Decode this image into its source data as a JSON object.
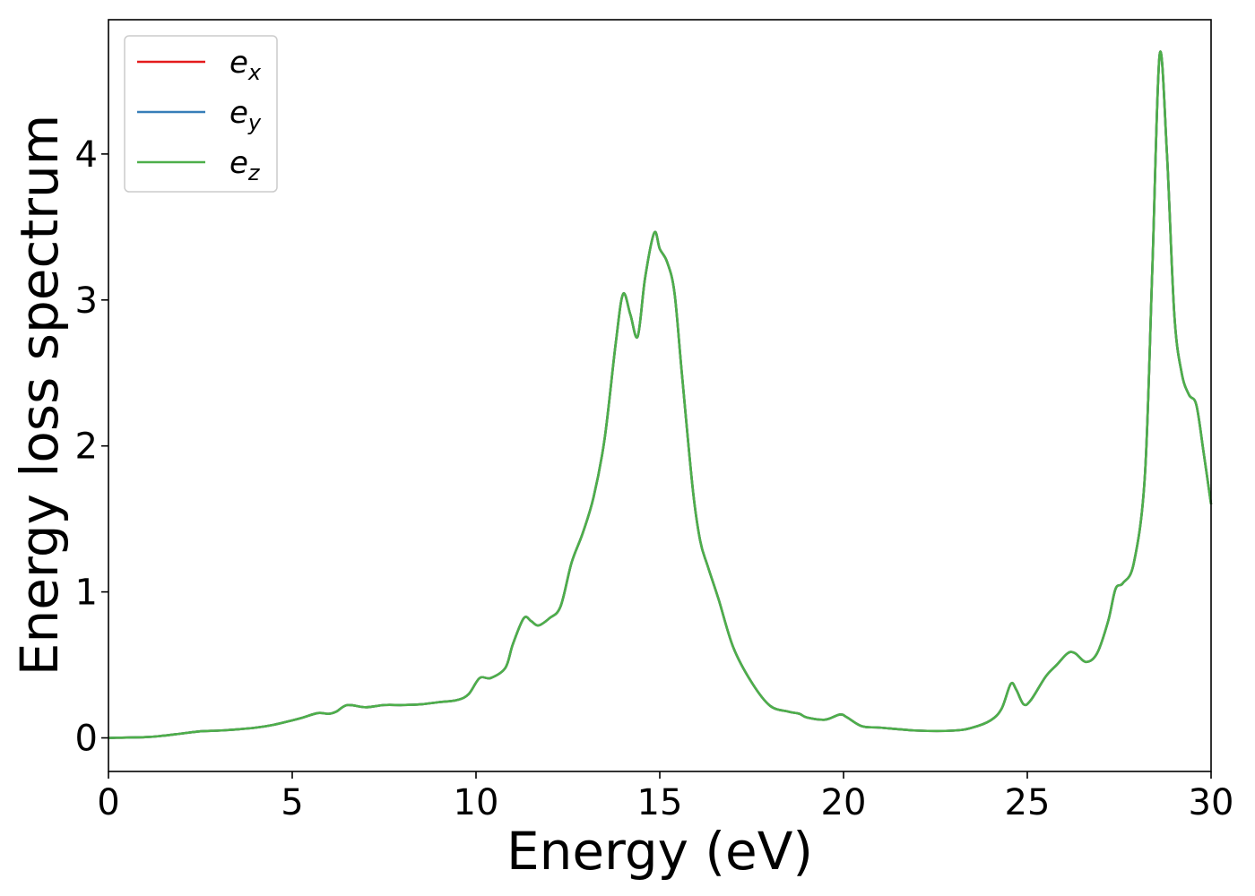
{
  "chart_data": {
    "type": "line",
    "xlabel": "Energy (eV)",
    "ylabel": "Energy loss spectrum",
    "xlim": [
      0,
      30
    ],
    "ylim": [
      -0.23,
      4.92
    ],
    "xticks": [
      0,
      5,
      10,
      15,
      20,
      25,
      30
    ],
    "yticks": [
      0,
      1,
      2,
      3,
      4
    ],
    "xtick_labels": [
      "0",
      "5",
      "10",
      "15",
      "20",
      "25",
      "30"
    ],
    "ytick_labels": [
      "0",
      "1",
      "2",
      "3",
      "4"
    ],
    "grid": false,
    "legend_position": "top-left",
    "colors": {
      "ex": "#e41a1c",
      "ey": "#377eb8",
      "ez": "#4daf4a"
    },
    "x": [
      0,
      1,
      1.5,
      2,
      2.5,
      3,
      3.5,
      4,
      4.5,
      5,
      5.3,
      5.7,
      6.0,
      6.2,
      6.5,
      7.0,
      7.5,
      8.0,
      8.5,
      9.0,
      9.5,
      9.8,
      10.1,
      10.4,
      10.8,
      11.0,
      11.3,
      11.5,
      11.7,
      12.0,
      12.3,
      12.6,
      12.9,
      13.2,
      13.5,
      13.8,
      14.0,
      14.2,
      14.4,
      14.6,
      14.85,
      15.0,
      15.2,
      15.4,
      15.6,
      15.9,
      16.1,
      16.3,
      16.6,
      17.0,
      17.5,
      18.0,
      18.5,
      18.8,
      19.0,
      19.5,
      19.9,
      20.1,
      20.5,
      21.0,
      22.0,
      23.0,
      23.5,
      24.0,
      24.3,
      24.55,
      24.7,
      24.9,
      25.1,
      25.5,
      25.8,
      26.1,
      26.3,
      26.6,
      26.9,
      27.2,
      27.4,
      27.6,
      27.9,
      28.2,
      28.4,
      28.6,
      28.8,
      29.0,
      29.2,
      29.4,
      29.6,
      29.8,
      30.0
    ],
    "series": [
      {
        "name": "e_x",
        "label_base": "e",
        "label_sub": "x",
        "values": [
          0,
          0.005,
          0.015,
          0.03,
          0.045,
          0.05,
          0.058,
          0.07,
          0.09,
          0.12,
          0.14,
          0.17,
          0.165,
          0.18,
          0.225,
          0.21,
          0.225,
          0.225,
          0.23,
          0.245,
          0.26,
          0.3,
          0.41,
          0.41,
          0.48,
          0.64,
          0.82,
          0.8,
          0.77,
          0.82,
          0.9,
          1.2,
          1.4,
          1.65,
          2.05,
          2.7,
          3.04,
          2.9,
          2.75,
          3.15,
          3.46,
          3.35,
          3.26,
          3.05,
          2.5,
          1.7,
          1.35,
          1.18,
          0.95,
          0.62,
          0.38,
          0.22,
          0.18,
          0.165,
          0.14,
          0.125,
          0.16,
          0.14,
          0.08,
          0.07,
          0.05,
          0.05,
          0.07,
          0.12,
          0.2,
          0.37,
          0.33,
          0.23,
          0.26,
          0.42,
          0.5,
          0.58,
          0.58,
          0.52,
          0.58,
          0.8,
          1.02,
          1.06,
          1.2,
          1.8,
          3.2,
          4.68,
          4.0,
          2.9,
          2.5,
          2.35,
          2.28,
          1.95,
          1.6
        ]
      },
      {
        "name": "e_y",
        "label_base": "e",
        "label_sub": "y",
        "values": [
          0,
          0.005,
          0.015,
          0.03,
          0.045,
          0.05,
          0.058,
          0.07,
          0.09,
          0.12,
          0.14,
          0.17,
          0.165,
          0.18,
          0.225,
          0.21,
          0.225,
          0.225,
          0.23,
          0.245,
          0.26,
          0.3,
          0.41,
          0.41,
          0.48,
          0.64,
          0.82,
          0.8,
          0.77,
          0.82,
          0.9,
          1.2,
          1.4,
          1.65,
          2.05,
          2.7,
          3.04,
          2.9,
          2.75,
          3.15,
          3.46,
          3.35,
          3.26,
          3.05,
          2.5,
          1.7,
          1.35,
          1.18,
          0.95,
          0.62,
          0.38,
          0.22,
          0.18,
          0.165,
          0.14,
          0.125,
          0.16,
          0.14,
          0.08,
          0.07,
          0.05,
          0.05,
          0.07,
          0.12,
          0.2,
          0.37,
          0.33,
          0.23,
          0.26,
          0.42,
          0.5,
          0.58,
          0.58,
          0.52,
          0.58,
          0.8,
          1.02,
          1.06,
          1.2,
          1.8,
          3.2,
          4.68,
          4.0,
          2.9,
          2.5,
          2.35,
          2.28,
          1.95,
          1.6
        ]
      },
      {
        "name": "e_z",
        "label_base": "e",
        "label_sub": "z",
        "values": [
          0,
          0.005,
          0.015,
          0.03,
          0.045,
          0.05,
          0.058,
          0.07,
          0.09,
          0.12,
          0.14,
          0.17,
          0.165,
          0.18,
          0.225,
          0.21,
          0.225,
          0.225,
          0.23,
          0.245,
          0.26,
          0.3,
          0.41,
          0.41,
          0.48,
          0.64,
          0.82,
          0.8,
          0.77,
          0.82,
          0.9,
          1.2,
          1.4,
          1.65,
          2.05,
          2.7,
          3.04,
          2.9,
          2.75,
          3.15,
          3.46,
          3.35,
          3.26,
          3.05,
          2.5,
          1.7,
          1.35,
          1.18,
          0.95,
          0.62,
          0.38,
          0.22,
          0.18,
          0.165,
          0.14,
          0.125,
          0.16,
          0.14,
          0.08,
          0.07,
          0.05,
          0.05,
          0.07,
          0.12,
          0.2,
          0.37,
          0.33,
          0.23,
          0.26,
          0.42,
          0.5,
          0.58,
          0.58,
          0.52,
          0.58,
          0.8,
          1.02,
          1.06,
          1.2,
          1.8,
          3.2,
          4.68,
          4.0,
          2.9,
          2.5,
          2.35,
          2.28,
          1.95,
          1.6
        ]
      }
    ]
  }
}
